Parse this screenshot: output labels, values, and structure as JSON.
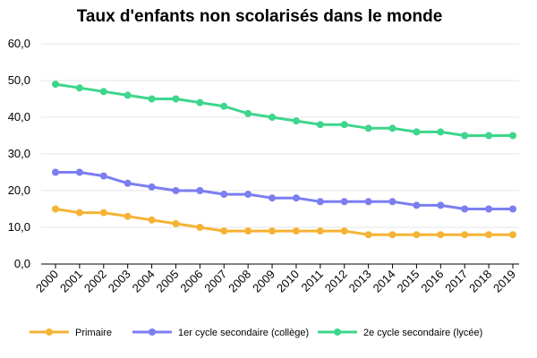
{
  "chart_data": {
    "type": "line",
    "title": "Taux d'enfants non scolarisés dans le monde",
    "xlabel": "",
    "ylabel": "",
    "x": [
      "2000",
      "2001",
      "2002",
      "2003",
      "2004",
      "2005",
      "2006",
      "2007",
      "2008",
      "2009",
      "2010",
      "2011",
      "2012",
      "2013",
      "2014",
      "2015",
      "2016",
      "2017",
      "2018",
      "2019"
    ],
    "ylim": [
      0,
      60
    ],
    "yticks": [
      "0,0",
      "10,0",
      "20,0",
      "30,0",
      "40,0",
      "50,0",
      "60,0"
    ],
    "ytick_values": [
      0,
      10,
      20,
      30,
      40,
      50,
      60
    ],
    "grid": true,
    "legend_position": "bottom",
    "series": [
      {
        "name": "Primaire",
        "color": "#f5b335",
        "values": [
          15,
          14,
          14,
          13,
          12,
          11,
          10,
          9,
          9,
          9,
          9,
          9,
          9,
          8,
          8,
          8,
          8,
          8,
          8,
          8
        ]
      },
      {
        "name": "1er cycle secondaire (collège)",
        "color": "#7b7ef0",
        "values": [
          25,
          25,
          24,
          22,
          21,
          20,
          20,
          19,
          19,
          18,
          18,
          17,
          17,
          17,
          17,
          16,
          16,
          15,
          15,
          15
        ]
      },
      {
        "name": "2e cycle secondaire (lycée)",
        "color": "#3dd68c",
        "values": [
          49,
          48,
          47,
          46,
          45,
          45,
          44,
          43,
          41,
          40,
          39,
          38,
          38,
          37,
          37,
          36,
          36,
          35,
          35,
          35
        ]
      }
    ]
  }
}
